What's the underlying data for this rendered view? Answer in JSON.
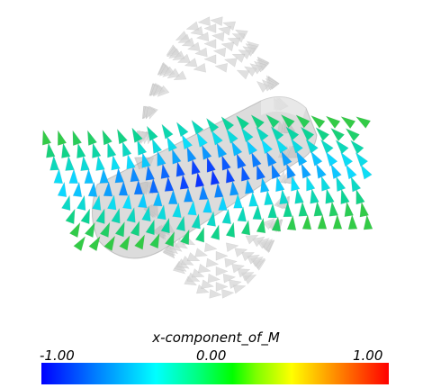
{
  "colorbar": {
    "title": "x-component_of_M",
    "min_label": "-1.00",
    "mid_label": "0.00",
    "max_label": "1.00",
    "min": -1.0,
    "max": 1.0,
    "colormap": [
      "#0000ff",
      "#00ffff",
      "#00ff00",
      "#ffff00",
      "#ff0000"
    ]
  },
  "scene": {
    "description_icon": "3d-vector-glyph-field",
    "ghost_color": "#d0d0d0",
    "surface_color": "#c8c8c8"
  }
}
